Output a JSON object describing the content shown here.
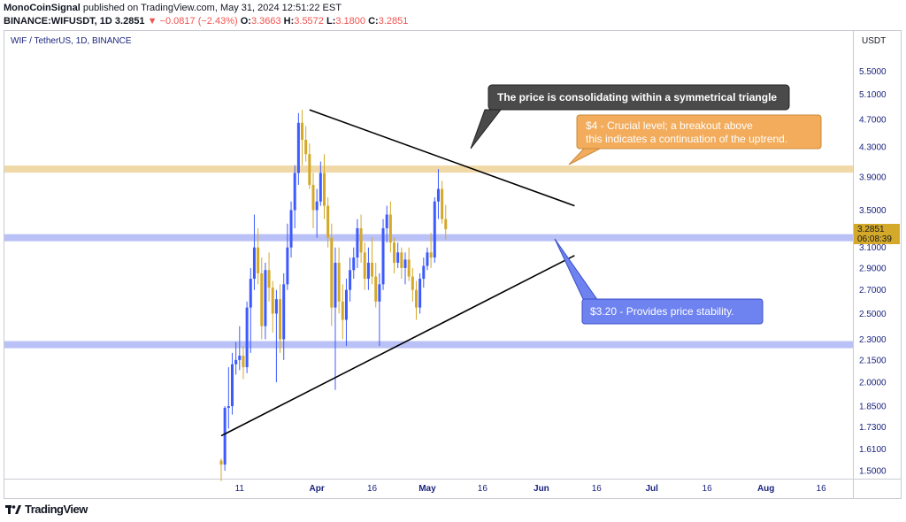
{
  "header": {
    "author": "MonoCoinSignal",
    "published_text": "published on TradingView.com, May 31, 2024 12:51:22 EST",
    "symbol_line": "BINANCE:WIFUSDT, 1D",
    "last": "3.2851",
    "change": "▼ −0.0817 (−2.43%)",
    "o_label": "O:",
    "o": "3.3663",
    "h_label": "H:",
    "h": "3.5572",
    "l_label": "L:",
    "l": "3.1800",
    "c_label": "C:",
    "c": "3.2851"
  },
  "chart_title": "WIF / TetherUS, 1D, BINANCE",
  "currency": "USDT",
  "price_tag": {
    "price": "3.2851",
    "countdown": "06:08:39"
  },
  "annotations": {
    "triangle_note": "The price is consolidating within a symmetrical triangle",
    "level4_line1": "$4 - Crucial level; a breakout above",
    "level4_line2": "this indicates a continuation of the uptrend.",
    "level320": "$3.20 - Provides price stability."
  },
  "footer": {
    "brand": "TradingView",
    "icon": "tradingview-logo-icon"
  },
  "colors": {
    "up": "#3d5afe",
    "down": "#d4a92a",
    "band_gold": "#f0d9a6",
    "band_blue": "#b9c1f6",
    "axis_text": "#1a237e"
  },
  "chart_data": {
    "type": "candlestick",
    "title": "WIF / TetherUS, 1D, BINANCE",
    "y_scale": "log",
    "y_ticks": [
      "5.5000",
      "5.1000",
      "4.7000",
      "4.3000",
      "3.9000",
      "3.5000",
      "3.1000",
      "2.9000",
      "2.7000",
      "2.5000",
      "2.3000",
      "2.1500",
      "2.0000",
      "1.8500",
      "1.7300",
      "1.6100",
      "1.5000"
    ],
    "x_ticks": [
      {
        "label": "11",
        "date": "2024-03-11",
        "month": false
      },
      {
        "label": "Apr",
        "date": "2024-04-01",
        "month": true
      },
      {
        "label": "16",
        "date": "2024-04-16",
        "month": false
      },
      {
        "label": "May",
        "date": "2024-05-01",
        "month": true
      },
      {
        "label": "16",
        "date": "2024-05-16",
        "month": false
      },
      {
        "label": "Jun",
        "date": "2024-06-01",
        "month": true
      },
      {
        "label": "16",
        "date": "2024-06-16",
        "month": false
      },
      {
        "label": "Jul",
        "date": "2024-07-01",
        "month": true
      },
      {
        "label": "16",
        "date": "2024-07-16",
        "month": false
      },
      {
        "label": "Aug",
        "date": "2024-08-01",
        "month": true
      },
      {
        "label": "16",
        "date": "2024-08-16",
        "month": false
      }
    ],
    "first_date": "2024-03-06",
    "ohlc": [
      [
        1.55,
        1.56,
        1.45,
        1.53
      ],
      [
        1.53,
        1.85,
        1.5,
        1.84
      ],
      [
        1.84,
        2.1,
        1.72,
        1.85
      ],
      [
        1.85,
        2.2,
        1.8,
        2.12
      ],
      [
        2.12,
        2.28,
        2.05,
        2.15
      ],
      [
        2.15,
        2.4,
        2.08,
        2.18
      ],
      [
        2.18,
        2.25,
        2.02,
        2.1
      ],
      [
        2.1,
        2.6,
        2.06,
        2.55
      ],
      [
        2.55,
        2.9,
        2.2,
        2.8
      ],
      [
        2.8,
        3.45,
        2.7,
        3.1
      ],
      [
        3.1,
        3.3,
        2.75,
        2.85
      ],
      [
        2.85,
        3.0,
        2.3,
        2.4
      ],
      [
        2.4,
        2.95,
        2.3,
        2.88
      ],
      [
        2.88,
        3.05,
        2.6,
        2.72
      ],
      [
        2.72,
        2.78,
        2.35,
        2.5
      ],
      [
        2.5,
        2.7,
        2.0,
        2.62
      ],
      [
        2.62,
        2.75,
        2.2,
        2.3
      ],
      [
        2.3,
        2.85,
        2.15,
        2.75
      ],
      [
        2.75,
        3.35,
        2.7,
        3.1
      ],
      [
        3.1,
        3.6,
        3.0,
        3.5
      ],
      [
        3.5,
        4.05,
        3.3,
        3.95
      ],
      [
        3.95,
        4.8,
        3.8,
        4.65
      ],
      [
        4.65,
        4.85,
        4.05,
        4.4
      ],
      [
        4.4,
        4.6,
        4.1,
        4.2
      ],
      [
        4.2,
        4.35,
        3.75,
        3.8
      ],
      [
        3.8,
        3.95,
        3.3,
        3.5
      ],
      [
        3.5,
        3.75,
        3.2,
        3.6
      ],
      [
        3.6,
        4.1,
        3.55,
        3.95
      ],
      [
        3.95,
        4.2,
        3.4,
        3.55
      ],
      [
        3.55,
        3.65,
        3.1,
        3.2
      ],
      [
        3.2,
        3.35,
        2.4,
        2.55
      ],
      [
        2.55,
        3.1,
        1.95,
        2.95
      ],
      [
        2.95,
        3.1,
        2.5,
        2.6
      ],
      [
        2.6,
        2.75,
        2.3,
        2.45
      ],
      [
        2.45,
        2.8,
        2.25,
        2.7
      ],
      [
        2.7,
        3.0,
        2.6,
        2.88
      ],
      [
        2.88,
        3.1,
        2.8,
        3.0
      ],
      [
        3.0,
        3.4,
        2.9,
        3.3
      ],
      [
        3.3,
        3.45,
        2.95,
        3.05
      ],
      [
        3.05,
        3.15,
        2.7,
        2.8
      ],
      [
        2.8,
        3.1,
        2.7,
        2.95
      ],
      [
        2.95,
        3.2,
        2.75,
        2.82
      ],
      [
        2.82,
        2.95,
        2.55,
        2.6
      ],
      [
        2.6,
        2.85,
        2.25,
        2.75
      ],
      [
        2.75,
        3.4,
        2.7,
        3.3
      ],
      [
        3.3,
        3.55,
        3.15,
        3.45
      ],
      [
        3.45,
        3.6,
        3.05,
        3.15
      ],
      [
        3.15,
        3.2,
        2.85,
        2.95
      ],
      [
        2.95,
        3.15,
        2.9,
        3.05
      ],
      [
        3.05,
        3.1,
        2.8,
        2.9
      ],
      [
        2.9,
        3.05,
        2.75,
        2.98
      ],
      [
        2.98,
        3.1,
        2.78,
        2.82
      ],
      [
        2.82,
        2.9,
        2.6,
        2.7
      ],
      [
        2.7,
        2.78,
        2.45,
        2.55
      ],
      [
        2.55,
        2.85,
        2.5,
        2.8
      ],
      [
        2.8,
        3.0,
        2.72,
        2.92
      ],
      [
        2.92,
        3.1,
        2.88,
        3.05
      ],
      [
        3.05,
        3.25,
        2.9,
        3.0
      ],
      [
        3.0,
        3.65,
        2.95,
        3.6
      ],
      [
        3.6,
        4.0,
        3.4,
        3.75
      ],
      [
        3.75,
        3.85,
        3.35,
        3.4
      ],
      [
        3.4,
        3.56,
        3.18,
        3.29
      ]
    ],
    "levels": [
      {
        "price": 4.0,
        "color": "#f0d9a6"
      },
      {
        "price": 3.2,
        "color": "#b9c1f6"
      },
      {
        "price": 2.26,
        "color": "#b9c1f6"
      }
    ],
    "trendlines": [
      {
        "from": [
          "2024-03-30",
          4.85
        ],
        "to": [
          "2024-06-10",
          3.55
        ]
      },
      {
        "from": [
          "2024-03-06",
          1.68
        ],
        "to": [
          "2024-06-10",
          3.02
        ]
      }
    ]
  }
}
